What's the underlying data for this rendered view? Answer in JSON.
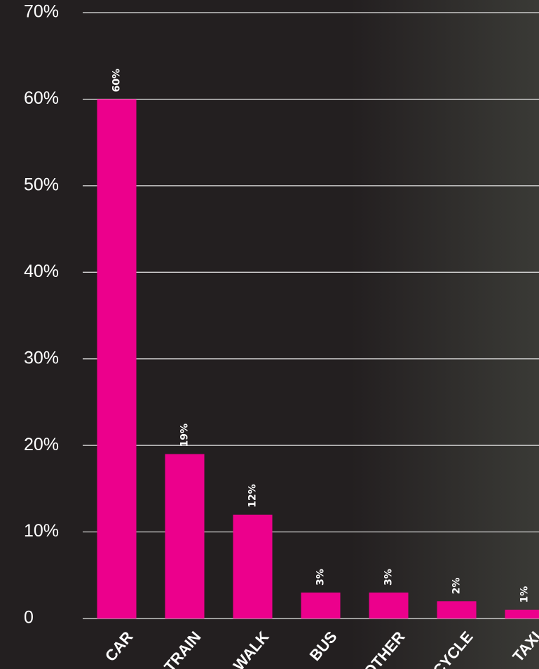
{
  "chart_data": {
    "type": "bar",
    "categories": [
      "CAR",
      "TRAIN",
      "WALK",
      "BUS",
      "OTHER",
      "CYCLE",
      "TAXI"
    ],
    "values": [
      60,
      19,
      12,
      3,
      3,
      2,
      1
    ],
    "value_labels": [
      "60%",
      "19%",
      "12%",
      "3%",
      "3%",
      "2%",
      "1%"
    ],
    "color": "#ec008c",
    "ylim": [
      0,
      70
    ],
    "yticks": [
      0,
      {
        "value": 10,
        "label": "10%"
      },
      {
        "value": 20,
        "label": "20%"
      },
      {
        "value": 30,
        "label": "30%"
      },
      {
        "value": 40,
        "label": "40%"
      },
      {
        "value": 50,
        "label": "50%"
      },
      {
        "value": 60,
        "label": "60%"
      },
      {
        "value": 70,
        "label": "70%"
      }
    ],
    "grid": true
  }
}
